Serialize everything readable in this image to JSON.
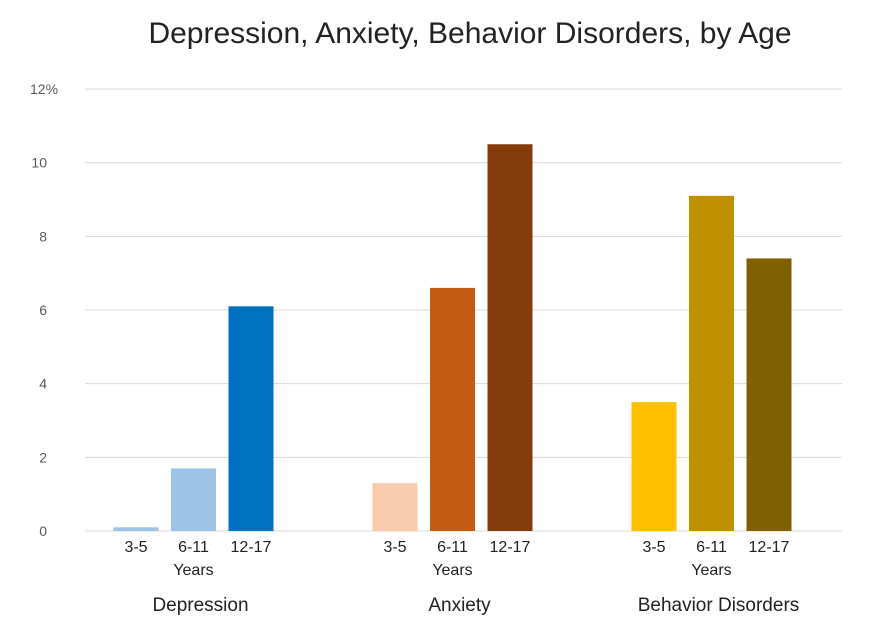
{
  "chart_data": {
    "type": "bar",
    "title": "Depression, Anxiety, Behavior Disorders, by Age",
    "ylabel": "",
    "ylim": [
      0,
      12
    ],
    "yticks": [
      "0",
      "2",
      "4",
      "6",
      "8",
      "10",
      "12%"
    ],
    "ytick_values": [
      0,
      2,
      4,
      6,
      8,
      10,
      12
    ],
    "grid": true,
    "sublabel": "Years",
    "groups": [
      {
        "name": "Depression",
        "categories": [
          "3-5",
          "6-11",
          "12-17"
        ],
        "values": [
          0.1,
          1.7,
          6.1
        ],
        "colors": [
          "#9dc3e6",
          "#9dc3e6",
          "#0070c0"
        ]
      },
      {
        "name": "Anxiety",
        "categories": [
          "3-5",
          "6-11",
          "12-17"
        ],
        "values": [
          1.3,
          6.6,
          10.5
        ],
        "colors": [
          "#f8cbad",
          "#c55a11",
          "#843c0c"
        ]
      },
      {
        "name": "Behavior Disorders",
        "categories": [
          "3-5",
          "6-11",
          "12-17"
        ],
        "values": [
          3.5,
          9.1,
          7.4
        ],
        "colors": [
          "#ffc000",
          "#bf9000",
          "#7f6000"
        ]
      }
    ]
  }
}
